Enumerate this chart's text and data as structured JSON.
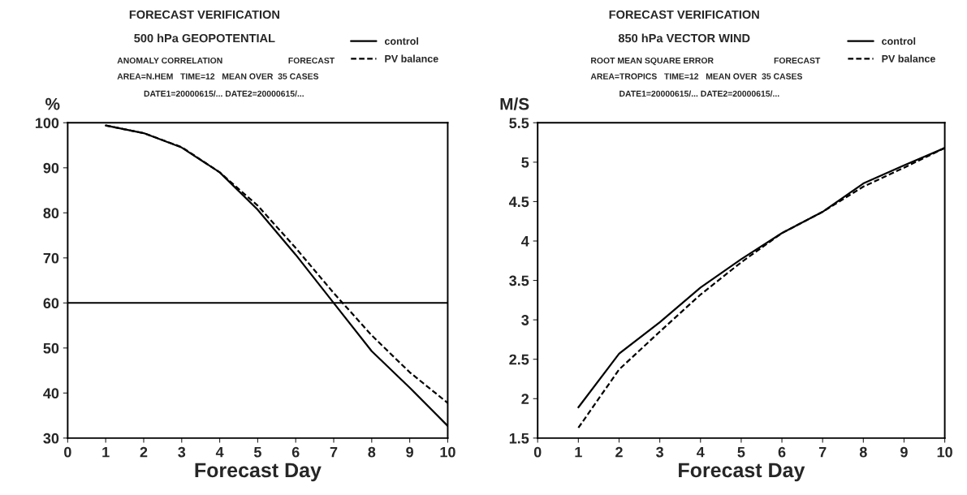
{
  "chart_data": [
    {
      "type": "line",
      "title": "FORECAST VERIFICATION",
      "subtitle": "500 hPa GEOPOTENTIAL",
      "xlabel": "Forecast Day",
      "ylabel": "%",
      "annotations": [
        "ANOMALY CORRELATION",
        "FORECAST",
        "AREA=N.HEM   TIME=12   MEAN OVER  35 CASES",
        "DATE1=20000615/... DATE2=20000615/..."
      ],
      "x": [
        1,
        2,
        3,
        4,
        5,
        6,
        7,
        8,
        9,
        10
      ],
      "series": [
        {
          "name": "control",
          "color": "#000000",
          "line_style": "solid",
          "values": [
            99.4,
            97.7,
            94.5,
            89,
            80.7,
            70.7,
            60,
            49.3,
            41.2,
            32.7
          ]
        },
        {
          "name": "PV balance",
          "color": "#000000",
          "line_style": "dashed",
          "values": [
            99.4,
            97.7,
            94.6,
            89,
            81.6,
            72.2,
            62.2,
            52.8,
            44.6,
            37.8
          ]
        }
      ],
      "ref_lines": [
        {
          "axis": "y",
          "value": 60,
          "color": "#000000"
        }
      ],
      "xlim": [
        0,
        10
      ],
      "xticks": [
        0,
        1,
        2,
        3,
        4,
        5,
        6,
        7,
        8,
        9,
        10
      ],
      "ylim": [
        30,
        100
      ],
      "yticks": [
        30,
        40,
        50,
        60,
        70,
        80,
        90,
        100
      ],
      "grid": false,
      "legend": "top right",
      "marker": "none"
    },
    {
      "type": "line",
      "title": "FORECAST VERIFICATION",
      "subtitle": "850 hPa VECTOR WIND",
      "xlabel": "Forecast Day",
      "ylabel": "M/S",
      "annotations": [
        "ROOT MEAN SQUARE ERROR",
        "FORECAST",
        "AREA=TROPICS   TIME=12   MEAN OVER  35 CASES",
        "DATE1=20000615/... DATE2=20000615/..."
      ],
      "x": [
        1,
        2,
        3,
        4,
        5,
        6,
        7,
        8,
        9,
        10
      ],
      "series": [
        {
          "name": "control",
          "color": "#000000",
          "line_style": "solid",
          "values": [
            1.89,
            2.57,
            2.97,
            3.41,
            3.77,
            4.1,
            4.37,
            4.73,
            4.96,
            5.18
          ]
        },
        {
          "name": "PV balance",
          "color": "#000000",
          "line_style": "dashed",
          "values": [
            1.63,
            2.37,
            2.85,
            3.32,
            3.73,
            4.1,
            4.37,
            4.69,
            4.93,
            5.18
          ]
        }
      ],
      "xlim": [
        0,
        10
      ],
      "xticks": [
        0,
        1,
        2,
        3,
        4,
        5,
        6,
        7,
        8,
        9,
        10
      ],
      "ylim": [
        1.5,
        5.5
      ],
      "yticks": [
        1.5,
        2,
        2.5,
        3,
        3.5,
        4,
        4.5,
        5,
        5.5
      ],
      "grid": false,
      "legend": "top right",
      "marker": "none"
    }
  ]
}
